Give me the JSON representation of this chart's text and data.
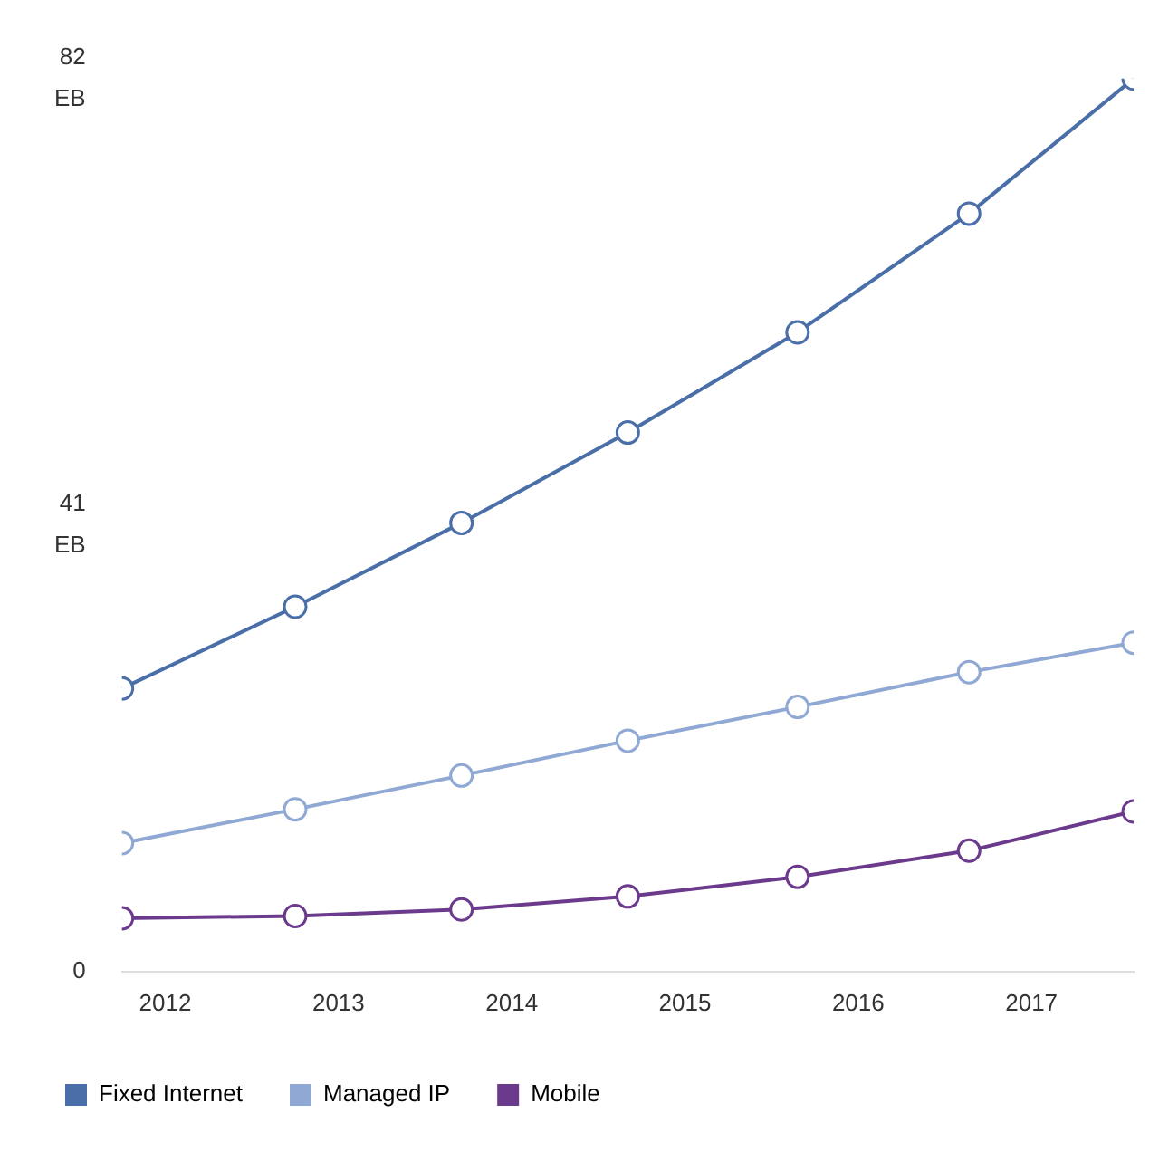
{
  "chart_data": {
    "type": "line",
    "x": [
      2011.75,
      2012.75,
      2013.71,
      2014.67,
      2015.65,
      2016.64,
      2017.59
    ],
    "xlim": [
      2011.75,
      2017.59
    ],
    "xticks": [
      2012,
      2013,
      2014,
      2015,
      2016,
      2017
    ],
    "ylim": [
      0,
      82
    ],
    "yticks": [
      0,
      {
        "value": 41,
        "label": "41 EB"
      },
      {
        "value": 82,
        "label": "82 EB"
      }
    ],
    "series": [
      {
        "name": "Fixed Internet",
        "color": "#4a6fa8",
        "values": [
          26.0,
          33.5,
          41.2,
          49.5,
          58.7,
          69.6,
          82.0
        ]
      },
      {
        "name": "Managed IP",
        "color": "#8fa9d4",
        "values": [
          11.8,
          14.9,
          18.0,
          21.2,
          24.3,
          27.5,
          30.2
        ]
      },
      {
        "name": "Mobile",
        "color": "#6b3a8c",
        "values": [
          4.9,
          5.1,
          5.7,
          6.9,
          8.7,
          11.1,
          14.7
        ]
      }
    ],
    "grid": false,
    "legend": "bottom",
    "marker": "circle",
    "line_style": "solid"
  }
}
